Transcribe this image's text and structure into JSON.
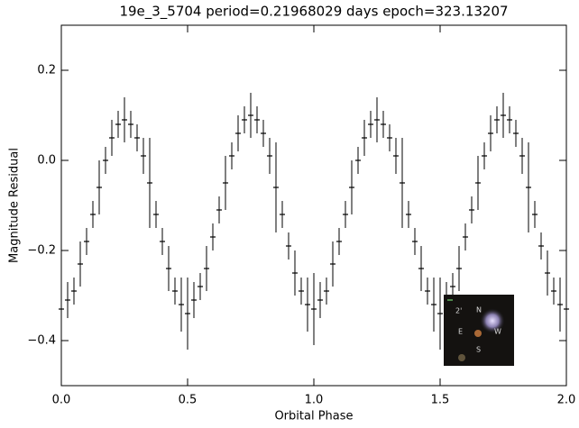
{
  "chart_data": {
    "type": "errorbar",
    "title": "19e_3_5704 period=0.21968029 days epoch=323.13207",
    "xlabel": "Orbital Phase",
    "ylabel": "Magnitude Residual",
    "xlim": [
      0,
      2
    ],
    "ylim": [
      -0.5,
      0.3
    ],
    "xticks": [
      {
        "value": 0,
        "label": "0.0"
      },
      {
        "value": 0.5,
        "label": "0.5"
      },
      {
        "value": 1,
        "label": "1.0"
      },
      {
        "value": 1.5,
        "label": "1.5"
      },
      {
        "value": 2,
        "label": "2.0"
      }
    ],
    "yticks": [
      {
        "value": -0.4,
        "label": "−0.4"
      },
      {
        "value": -0.2,
        "label": "−0.2"
      },
      {
        "value": 0,
        "label": "0.0"
      },
      {
        "value": 0.2,
        "label": "0.2"
      }
    ],
    "color": "#000000",
    "x": [
      0,
      0.025,
      0.05,
      0.075,
      0.1,
      0.125,
      0.15,
      0.175,
      0.2,
      0.225,
      0.25,
      0.275,
      0.3,
      0.325,
      0.35,
      0.375,
      0.4,
      0.425,
      0.45,
      0.475,
      0.5,
      0.525,
      0.55,
      0.575,
      0.6,
      0.625,
      0.65,
      0.675,
      0.7,
      0.725,
      0.75,
      0.775,
      0.8,
      0.825,
      0.85,
      0.875,
      0.9,
      0.925,
      0.95,
      0.975,
      1,
      1.025,
      1.05,
      1.075,
      1.1,
      1.125,
      1.15,
      1.175,
      1.2,
      1.225,
      1.25,
      1.275,
      1.3,
      1.325,
      1.35,
      1.375,
      1.4,
      1.425,
      1.45,
      1.475,
      1.5,
      1.525,
      1.55,
      1.575,
      1.6,
      1.625,
      1.65,
      1.675,
      1.7,
      1.725,
      1.75,
      1.775,
      1.8,
      1.825,
      1.85,
      1.875,
      1.9,
      1.925,
      1.95,
      1.975,
      2
    ],
    "values": [
      -0.33,
      -0.31,
      -0.29,
      -0.23,
      -0.18,
      -0.12,
      -0.06,
      0.0,
      0.05,
      0.08,
      0.09,
      0.08,
      0.05,
      0.01,
      -0.05,
      -0.12,
      -0.18,
      -0.24,
      -0.29,
      -0.32,
      -0.34,
      -0.31,
      -0.28,
      -0.24,
      -0.17,
      -0.11,
      -0.05,
      0.01,
      0.06,
      0.09,
      0.1,
      0.09,
      0.06,
      0.01,
      -0.06,
      -0.12,
      -0.19,
      -0.25,
      -0.29,
      -0.32,
      -0.33,
      -0.31,
      -0.29,
      -0.23,
      -0.18,
      -0.12,
      -0.06,
      0.0,
      0.05,
      0.08,
      0.09,
      0.08,
      0.05,
      0.01,
      -0.05,
      -0.12,
      -0.18,
      -0.24,
      -0.29,
      -0.32,
      -0.34,
      -0.31,
      -0.28,
      -0.24,
      -0.17,
      -0.11,
      -0.05,
      0.01,
      0.06,
      0.09,
      0.1,
      0.09,
      0.06,
      0.01,
      -0.06,
      -0.12,
      -0.19,
      -0.25,
      -0.29,
      -0.32,
      -0.33
    ],
    "errors": [
      0.08,
      0.04,
      0.03,
      0.05,
      0.03,
      0.03,
      0.06,
      0.03,
      0.04,
      0.03,
      0.05,
      0.03,
      0.03,
      0.04,
      0.1,
      0.03,
      0.03,
      0.05,
      0.03,
      0.06,
      0.08,
      0.04,
      0.03,
      0.05,
      0.03,
      0.03,
      0.06,
      0.03,
      0.04,
      0.03,
      0.05,
      0.03,
      0.03,
      0.04,
      0.1,
      0.03,
      0.03,
      0.05,
      0.03,
      0.06,
      0.08,
      0.04,
      0.03,
      0.05,
      0.03,
      0.03,
      0.06,
      0.03,
      0.04,
      0.03,
      0.05,
      0.03,
      0.03,
      0.04,
      0.1,
      0.03,
      0.03,
      0.05,
      0.03,
      0.06,
      0.08,
      0.04,
      0.03,
      0.05,
      0.03,
      0.03,
      0.06,
      0.03,
      0.04,
      0.03,
      0.05,
      0.03,
      0.03,
      0.04,
      0.1,
      0.03,
      0.03,
      0.05,
      0.03,
      0.06,
      0.08
    ],
    "inset": {
      "scale": "2'",
      "north": "N",
      "east": "E",
      "west": "W",
      "south": "S"
    }
  }
}
